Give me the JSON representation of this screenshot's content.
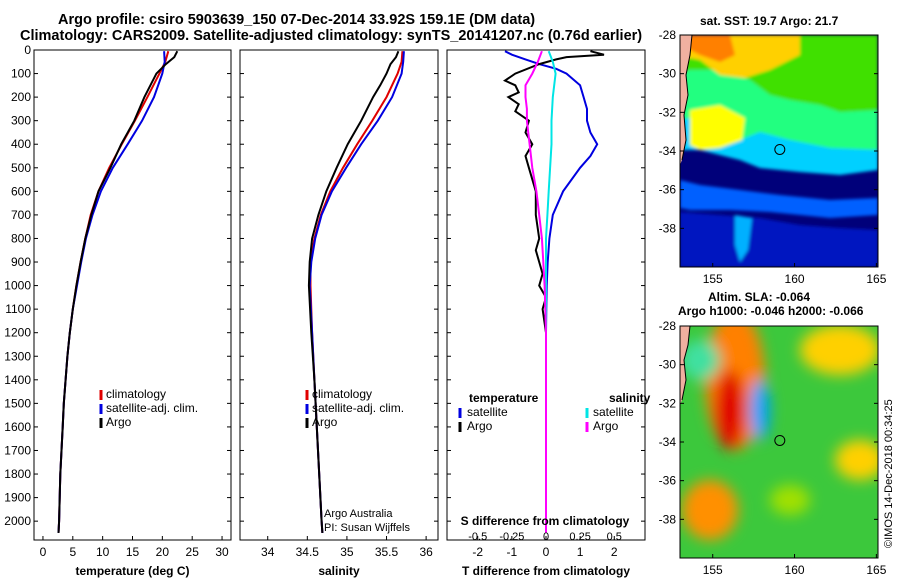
{
  "header": {
    "line1": "Argo profile: csiro 5903639_150 07-Dec-2014 33.92S 159.1E (DM data)",
    "line2": "Climatology: CARS2009. Satellite-adjusted climatology: synTS_20141207.nc (0.76d earlier)"
  },
  "colors": {
    "climatology": "#e00000",
    "satellite": "#0000e0",
    "argo": "#000000",
    "t_sat": "#0000e0",
    "s_sat": "#00e5e5",
    "s_argo": "#ff00ff"
  },
  "chart_data": [
    {
      "type": "line",
      "id": "temperature",
      "xlabel": "temperature (deg C)",
      "ylabel": "pressure",
      "xlim": [
        -1.5,
        31.5
      ],
      "ylim": [
        2080,
        0
      ],
      "xticks": [
        0,
        5,
        10,
        15,
        20,
        25,
        30
      ],
      "yticks": [
        0,
        100,
        200,
        300,
        400,
        500,
        600,
        700,
        800,
        900,
        1000,
        1100,
        1200,
        1300,
        1400,
        1500,
        1600,
        1700,
        1800,
        1900,
        2000
      ],
      "legend": [
        "climatology",
        "satellite-adj. clim.",
        "Argo"
      ],
      "series": [
        {
          "name": "climatology",
          "color": "#e00000",
          "p": [
            5,
            50,
            100,
            200,
            300,
            400,
            500,
            600,
            700,
            800,
            900,
            1000,
            1100,
            1200,
            1300,
            1400,
            1500,
            1600,
            1700,
            1800,
            1900,
            2000,
            2050
          ],
          "values": [
            21,
            20.5,
            19.5,
            17.5,
            15.4,
            13.2,
            11.1,
            9.3,
            8,
            7.1,
            6.3,
            5.6,
            5.0,
            4.5,
            4.1,
            3.8,
            3.5,
            3.3,
            3.1,
            2.9,
            2.8,
            2.7,
            2.6
          ]
        },
        {
          "name": "satellite-adj. clim.",
          "color": "#0000e0",
          "p": [
            5,
            50,
            100,
            200,
            300,
            400,
            500,
            600,
            700,
            800,
            900,
            1000,
            1100,
            1200,
            1300,
            1400,
            1500,
            1600,
            1700,
            1800,
            1900,
            2000,
            2050
          ],
          "values": [
            20.3,
            20.4,
            20,
            18.6,
            16.6,
            14.2,
            11.7,
            9.7,
            8.3,
            7.2,
            6.4,
            5.7,
            5.0,
            4.5,
            4.1,
            3.8,
            3.5,
            3.3,
            3.1,
            2.9,
            2.8,
            2.7,
            2.6
          ]
        },
        {
          "name": "Argo",
          "color": "#000000",
          "p": [
            5,
            30,
            60,
            100,
            150,
            200,
            300,
            400,
            500,
            600,
            700,
            800,
            900,
            1000,
            1100,
            1200,
            1300,
            1400,
            1500,
            1600,
            1700,
            1800,
            1900,
            2000,
            2050
          ],
          "values": [
            22.5,
            22,
            20.6,
            19,
            18,
            17,
            15.3,
            13.1,
            11.3,
            9.3,
            8.1,
            7.1,
            6.3,
            5.6,
            5.0,
            4.5,
            4.1,
            3.8,
            3.5,
            3.3,
            3.1,
            2.9,
            2.8,
            2.7,
            2.6
          ]
        }
      ]
    },
    {
      "type": "line",
      "id": "salinity",
      "xlabel": "salinity",
      "ylabel": "pressure",
      "xlim": [
        33.65,
        36.15
      ],
      "ylim": [
        2080,
        0
      ],
      "xticks": [
        34,
        34.5,
        35,
        35.5,
        36
      ],
      "legend": [
        "climatology",
        "satellite-adj. clim.",
        "Argo"
      ],
      "annotation": [
        "Argo Australia",
        "PI: Susan Wijffels"
      ],
      "series": [
        {
          "name": "climatology",
          "color": "#e00000",
          "p": [
            5,
            50,
            100,
            200,
            300,
            400,
            500,
            600,
            700,
            800,
            900,
            1000,
            1200,
            1400,
            1600,
            1800,
            2000,
            2050
          ],
          "values": [
            35.7,
            35.69,
            35.64,
            35.5,
            35.32,
            35.13,
            34.95,
            34.79,
            34.67,
            34.59,
            34.54,
            34.54,
            34.56,
            34.59,
            34.62,
            34.65,
            34.68,
            34.69
          ]
        },
        {
          "name": "satellite-adj. clim.",
          "color": "#0000e0",
          "p": [
            5,
            50,
            100,
            200,
            300,
            400,
            500,
            600,
            700,
            800,
            900,
            1000,
            1200,
            1400,
            1600,
            1800,
            2000,
            2050
          ],
          "values": [
            35.72,
            35.71,
            35.69,
            35.57,
            35.39,
            35.18,
            34.99,
            34.81,
            34.68,
            34.6,
            34.55,
            34.53,
            34.56,
            34.59,
            34.62,
            34.65,
            34.68,
            34.69
          ]
        },
        {
          "name": "Argo",
          "color": "#000000",
          "p": [
            5,
            30,
            60,
            100,
            150,
            200,
            300,
            400,
            500,
            600,
            700,
            800,
            900,
            1000,
            1200,
            1400,
            1600,
            1800,
            2000,
            2050
          ],
          "values": [
            35.65,
            35.62,
            35.55,
            35.5,
            35.42,
            35.33,
            35.18,
            35.01,
            34.87,
            34.74,
            34.64,
            34.56,
            34.53,
            34.52,
            34.55,
            34.59,
            34.62,
            34.65,
            34.68,
            34.69
          ]
        }
      ]
    },
    {
      "type": "line",
      "id": "difference",
      "xlabel": "T difference from climatology",
      "top_axis_label": "S difference from climatology",
      "xlim": [
        -2.9,
        2.9
      ],
      "s_xlim": [
        -0.725,
        0.725
      ],
      "ylim": [
        2080,
        0
      ],
      "xticks": [
        "-2",
        "-1",
        "0",
        "1",
        "2"
      ],
      "xtick_values": [
        -2,
        -1,
        0,
        1,
        2
      ],
      "s_ticks": [
        "-0.5",
        "-0.25",
        "0",
        "0.25",
        "0.5"
      ],
      "s_tick_values": [
        -0.5,
        -0.25,
        0,
        0.25,
        0.5
      ],
      "legend_t_title": "temperature",
      "legend_s_title": "salinity",
      "legend_t": [
        "satellite",
        "Argo"
      ],
      "legend_s": [
        "satellite",
        "Argo"
      ],
      "series": [
        {
          "name": "T satellite",
          "color": "#0000e0",
          "p": [
            5,
            20,
            40,
            60,
            80,
            100,
            150,
            200,
            250,
            300,
            350,
            400,
            450,
            500,
            600,
            700,
            800,
            900,
            1000,
            1100,
            1200,
            1500,
            2050
          ],
          "values": [
            -1.2,
            -1.0,
            -0.6,
            -0.2,
            0.3,
            0.6,
            1.0,
            1.1,
            1.2,
            1.2,
            1.3,
            1.5,
            1.3,
            1.0,
            0.5,
            0.2,
            0.1,
            0.05,
            0.02,
            0.01,
            0,
            0,
            0
          ]
        },
        {
          "name": "T Argo",
          "color": "#000000",
          "p": [
            5,
            20,
            30,
            40,
            60,
            100,
            130,
            150,
            180,
            200,
            230,
            260,
            300,
            350,
            400,
            450,
            500,
            600,
            700,
            800,
            850,
            900,
            950,
            1000,
            1050,
            1100,
            1200,
            2050
          ],
          "values": [
            1.3,
            1.7,
            0.6,
            0.3,
            -0.2,
            -0.9,
            -1.2,
            -0.9,
            -0.8,
            -1.1,
            -0.8,
            -0.9,
            -0.5,
            -0.6,
            -0.4,
            -0.6,
            -0.5,
            -0.3,
            -0.3,
            -0.2,
            -0.3,
            -0.2,
            -0.1,
            -0.2,
            0,
            -0.1,
            0,
            0
          ]
        },
        {
          "name": "S satellite",
          "color": "#00e5e5",
          "p": [
            5,
            50,
            100,
            150,
            200,
            300,
            400,
            500,
            600,
            700,
            800,
            1000,
            1200,
            1500,
            2050
          ],
          "values": [
            0.02,
            0.05,
            0.07,
            0.06,
            0.05,
            0.04,
            0.04,
            0.03,
            0.02,
            0.01,
            0.0,
            0.0,
            0.0,
            0.0,
            0.0
          ]
        },
        {
          "name": "S Argo",
          "color": "#ff00ff",
          "p": [
            5,
            50,
            100,
            150,
            200,
            250,
            300,
            400,
            500,
            600,
            700,
            800,
            900,
            1000,
            1200,
            1500,
            2050
          ],
          "values": [
            -0.03,
            -0.06,
            -0.1,
            -0.15,
            -0.15,
            -0.14,
            -0.14,
            -0.12,
            -0.1,
            -0.07,
            -0.05,
            -0.03,
            -0.02,
            -0.01,
            0,
            0,
            0
          ]
        }
      ]
    }
  ],
  "maps": {
    "sst": {
      "title": "sat. SST: 19.7  Argo: 21.7",
      "lat_ticks": [
        "-28",
        "-30",
        "-32",
        "-34",
        "-36",
        "-38"
      ],
      "lon_ticks": [
        "155",
        "160",
        "165"
      ],
      "marker": {
        "lon": 159.1,
        "lat": -33.92
      }
    },
    "sla": {
      "title1": "Altim. SLA: -0.064",
      "title2": "Argo h1000: -0.046 h2000: -0.066",
      "lat_ticks": [
        "-28",
        "-30",
        "-32",
        "-34",
        "-36",
        "-38"
      ],
      "lon_ticks": [
        "155",
        "160",
        "165"
      ],
      "marker": {
        "lon": 159.1,
        "lat": -33.92
      }
    }
  },
  "footer": "©IMOS 14-Dec-2018 00:34:25"
}
